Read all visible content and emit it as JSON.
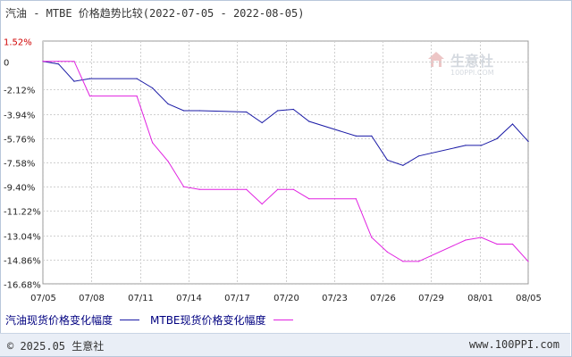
{
  "title": "汽油 - MTBE 价格趋势比较(2022-07-05 - 2022-08-05)",
  "chart_data": {
    "type": "line",
    "title": "汽油 - MTBE 价格趋势比较(2022-07-05 - 2022-08-05)",
    "xlabel": "",
    "ylabel": "",
    "ylim": [
      -16.68,
      1.52
    ],
    "y_ticks": [
      "1.52%",
      "0",
      "-2.12%",
      "-3.94%",
      "-5.76%",
      "-7.58%",
      "-9.40%",
      "-11.22%",
      "-13.04%",
      "-14.86%",
      "-16.68%"
    ],
    "y_tick_values": [
      1.52,
      0,
      -2.12,
      -3.94,
      -5.76,
      -7.58,
      -9.4,
      -11.22,
      -13.04,
      -14.86,
      -16.68
    ],
    "x_ticks": [
      "07/05",
      "07/08",
      "07/11",
      "07/14",
      "07/17",
      "07/20",
      "07/23",
      "07/26",
      "07/29",
      "08/01",
      "08/05"
    ],
    "grid": true,
    "legend_position": "bottom-left",
    "series": [
      {
        "name": "汽油现货价格变化幅度",
        "color": "#1a1aa6",
        "points": [
          [
            "2022-07-05",
            0
          ],
          [
            "2022-07-06",
            -0.2
          ],
          [
            "2022-07-07",
            -1.5
          ],
          [
            "2022-07-08",
            -1.3
          ],
          [
            "2022-07-11",
            -1.3
          ],
          [
            "2022-07-12",
            -2.0
          ],
          [
            "2022-07-13",
            -3.2
          ],
          [
            "2022-07-14",
            -3.7
          ],
          [
            "2022-07-15",
            -3.7
          ],
          [
            "2022-07-18",
            -3.8
          ],
          [
            "2022-07-19",
            -4.6
          ],
          [
            "2022-07-20",
            -3.7
          ],
          [
            "2022-07-21",
            -3.6
          ],
          [
            "2022-07-22",
            -4.5
          ],
          [
            "2022-07-25",
            -5.6
          ],
          [
            "2022-07-26",
            -5.6
          ],
          [
            "2022-07-27",
            -7.4
          ],
          [
            "2022-07-28",
            -7.8
          ],
          [
            "2022-07-29",
            -7.1
          ],
          [
            "2022-08-01",
            -6.3
          ],
          [
            "2022-08-02",
            -6.3
          ],
          [
            "2022-08-03",
            -5.8
          ],
          [
            "2022-08-04",
            -4.7
          ],
          [
            "2022-08-05",
            -6.0
          ]
        ]
      },
      {
        "name": "MTBE现货价格变化幅度",
        "color": "#e020e0",
        "points": [
          [
            "2022-07-05",
            0
          ],
          [
            "2022-07-06",
            0
          ],
          [
            "2022-07-07",
            0
          ],
          [
            "2022-07-08",
            -2.6
          ],
          [
            "2022-07-11",
            -2.6
          ],
          [
            "2022-07-12",
            -6.1
          ],
          [
            "2022-07-13",
            -7.5
          ],
          [
            "2022-07-14",
            -9.4
          ],
          [
            "2022-07-15",
            -9.6
          ],
          [
            "2022-07-18",
            -9.6
          ],
          [
            "2022-07-19",
            -10.7
          ],
          [
            "2022-07-20",
            -9.6
          ],
          [
            "2022-07-21",
            -9.6
          ],
          [
            "2022-07-22",
            -10.3
          ],
          [
            "2022-07-25",
            -10.3
          ],
          [
            "2022-07-26",
            -13.2
          ],
          [
            "2022-07-27",
            -14.3
          ],
          [
            "2022-07-28",
            -15.0
          ],
          [
            "2022-07-29",
            -15.0
          ],
          [
            "2022-08-01",
            -13.4
          ],
          [
            "2022-08-02",
            -13.2
          ],
          [
            "2022-08-03",
            -13.7
          ],
          [
            "2022-08-04",
            -13.7
          ],
          [
            "2022-08-05",
            -15.0
          ]
        ]
      }
    ]
  },
  "legend": {
    "item_1": "汽油现货价格变化幅度",
    "item_2": "MTBE现货价格变化幅度"
  },
  "watermark": {
    "text": "生意社",
    "sub": "100PPI.COM"
  },
  "footer": {
    "copyright": "© 2025.05 生意社",
    "url": "www.100PPI.com"
  }
}
